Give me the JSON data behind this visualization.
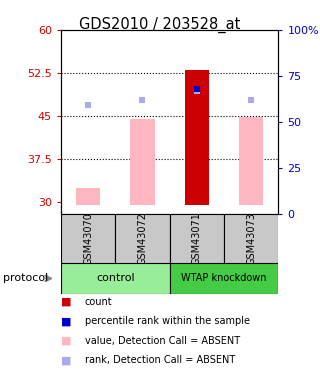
{
  "title": "GDS2010 / 203528_at",
  "samples": [
    "GSM43070",
    "GSM43072",
    "GSM43071",
    "GSM43073"
  ],
  "ylim_left": [
    28,
    60
  ],
  "ylim_right": [
    0,
    100
  ],
  "yticks_left": [
    30,
    37.5,
    45,
    52.5,
    60
  ],
  "yticks_right": [
    0,
    25,
    50,
    75,
    100
  ],
  "ytick_labels_left": [
    "30",
    "37.5",
    "45",
    "52.5",
    "60"
  ],
  "ytick_labels_right": [
    "0",
    "25",
    "50",
    "75",
    "100%"
  ],
  "bar_values": [
    32.5,
    44.5,
    53.0,
    44.8
  ],
  "bar_bottom": 29.5,
  "bar_color_absent": "#FFB6C1",
  "bar_color_present": "#CC0000",
  "rank_dots": [
    47.0,
    47.8,
    49.3,
    47.8
  ],
  "rank_dot_color": "#AAAAEE",
  "percentile_dot_value": 49.8,
  "percentile_dot_color": "#0000CC",
  "dotted_lines": [
    37.5,
    45.0,
    52.5
  ],
  "left_axis_color": "#CC0000",
  "right_axis_color": "#0000CC",
  "bg_color": "#FFFFFF",
  "header_bg": "#C8C8C8",
  "control_color": "#98EE98",
  "wtap_color": "#44CC44",
  "absent_bar_indices": [
    0,
    1,
    3
  ],
  "present_bar_indices": [
    2
  ],
  "legend_colors": [
    "#CC0000",
    "#0000CC",
    "#FFB6C1",
    "#AAAAEE"
  ],
  "legend_labels": [
    "count",
    "percentile rank within the sample",
    "value, Detection Call = ABSENT",
    "rank, Detection Call = ABSENT"
  ]
}
